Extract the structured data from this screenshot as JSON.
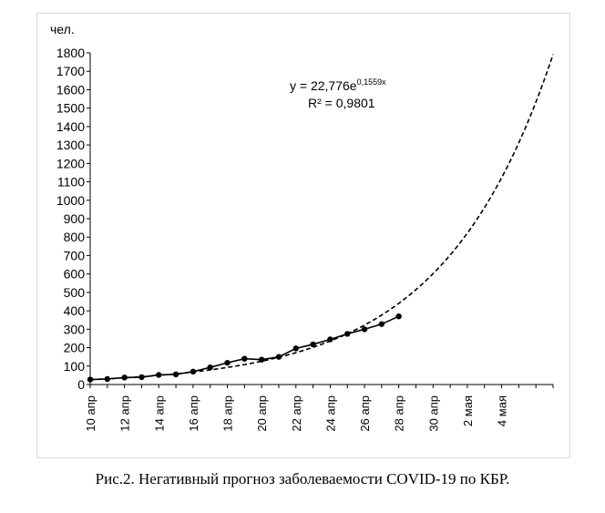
{
  "caption": "Рис.2. Негативный прогноз заболеваемости COVID-19 по КБР.",
  "chart_data": {
    "type": "line",
    "ylabel": "чел.",
    "ylim": [
      0,
      1800
    ],
    "yticks": [
      0,
      100,
      200,
      300,
      400,
      500,
      600,
      700,
      800,
      900,
      1000,
      1100,
      1200,
      1300,
      1400,
      1500,
      1600,
      1700,
      1800
    ],
    "x_tick_labels": [
      "10 апр",
      "12 апр",
      "14 апр",
      "16 апр",
      "18 апр",
      "20 апр",
      "22 апр",
      "24 апр",
      "26 апр",
      "28 апр",
      "30 апр",
      "2 мая",
      "4 мая"
    ],
    "x_range_days": [
      1,
      28
    ],
    "grid": false,
    "series": [
      {
        "style": "solid-markers",
        "x": [
          1,
          2,
          3,
          4,
          5,
          6,
          7,
          8,
          9,
          10,
          11,
          12,
          13,
          14,
          15,
          16,
          17,
          18,
          19
        ],
        "values": [
          27,
          30,
          38,
          40,
          52,
          55,
          70,
          93,
          118,
          140,
          135,
          150,
          196,
          218,
          245,
          275,
          300,
          328,
          370
        ]
      },
      {
        "style": "dashed-trendline",
        "trend": "exponential",
        "a": 22.776,
        "b": 0.1559
      }
    ],
    "annotations": {
      "equation_prefix": "y = 22,776e",
      "equation_exponent": "0,1559x",
      "r_squared": "R² = 0,9801"
    }
  }
}
